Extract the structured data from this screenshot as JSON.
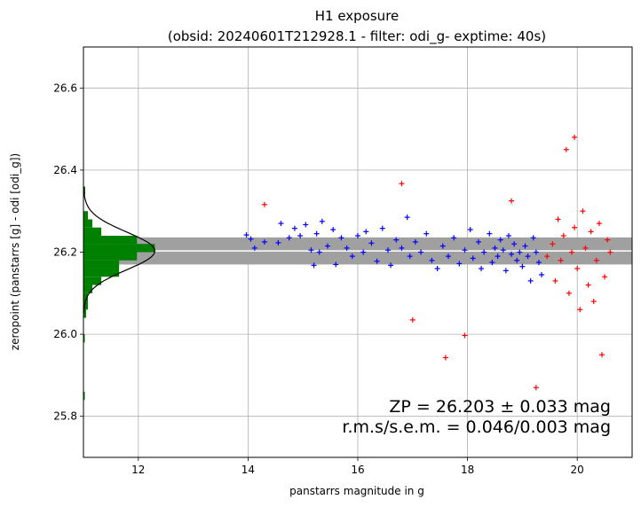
{
  "chart_data": {
    "type": "scatter",
    "title": "H1 exposure",
    "subtitle": "(obsid: 20240601T212928.1 - filter: odi_g- exptime: 40s)",
    "xlabel": "panstarrs magnitude in g",
    "ylabel": "zeropoint (panstarrs [g] - odi [odi_g])",
    "xlim": [
      11.0,
      21.0
    ],
    "ylim": [
      25.7,
      26.7
    ],
    "xticks": [
      12,
      14,
      16,
      18,
      20
    ],
    "xtick_labels": [
      "12",
      "14",
      "16",
      "18",
      "20"
    ],
    "yticks": [
      25.8,
      26.0,
      26.2,
      26.4,
      26.6
    ],
    "ytick_labels": [
      "25.8",
      "26.0",
      "26.2",
      "26.4",
      "26.6"
    ],
    "grid": true,
    "zero_point": 26.203,
    "zp_uncertainty": 0.033,
    "rms": 0.046,
    "sem": 0.003,
    "annotation_lines": [
      "ZP = 26.203 ± 0.033 mag",
      "r.m.s/s.e.m. = 0.046/0.003 mag"
    ],
    "colors": {
      "used": "#0000ff",
      "rejected": "#ff0000",
      "histogram": "#008000",
      "band": "#a0a0a0",
      "zp_line": "#ffffff",
      "gaussian": "#000000",
      "grid": "#b0b0b0"
    },
    "histogram": {
      "orientation": "horizontal",
      "bins": [
        {
          "y0": 26.16,
          "y1": 26.18,
          "count": 4
        },
        {
          "y0": 26.18,
          "y1": 26.2,
          "count": 6
        },
        {
          "y0": 26.2,
          "y1": 26.22,
          "count": 8
        },
        {
          "y0": 26.22,
          "y1": 26.24,
          "count": 6
        },
        {
          "y0": 26.14,
          "y1": 26.16,
          "count": 4
        },
        {
          "y0": 26.12,
          "y1": 26.14,
          "count": 2
        },
        {
          "y0": 26.24,
          "y1": 26.26,
          "count": 2
        },
        {
          "y0": 26.1,
          "y1": 26.12,
          "count": 1
        },
        {
          "y0": 26.26,
          "y1": 26.28,
          "count": 1
        },
        {
          "y0": 26.08,
          "y1": 26.1,
          "count": 0.5
        },
        {
          "y0": 26.28,
          "y1": 26.3,
          "count": 0.5
        },
        {
          "y0": 26.06,
          "y1": 26.08,
          "count": 0.5
        },
        {
          "y0": 26.04,
          "y1": 26.06,
          "count": 0.3
        },
        {
          "y0": 26.34,
          "y1": 26.36,
          "count": 0.2
        },
        {
          "y0": 25.98,
          "y1": 26.0,
          "count": 0.15
        },
        {
          "y0": 25.84,
          "y1": 25.86,
          "count": 0.15
        }
      ]
    },
    "series": [
      {
        "status": "used",
        "points": [
          {
            "x": 13.97,
            "y": 26.242
          },
          {
            "x": 14.05,
            "y": 26.232
          },
          {
            "x": 14.12,
            "y": 26.21
          },
          {
            "x": 14.3,
            "y": 26.225
          },
          {
            "x": 14.55,
            "y": 26.223
          },
          {
            "x": 14.6,
            "y": 26.27
          },
          {
            "x": 14.75,
            "y": 26.235
          },
          {
            "x": 14.85,
            "y": 26.258
          },
          {
            "x": 14.95,
            "y": 26.24
          },
          {
            "x": 15.05,
            "y": 26.267
          },
          {
            "x": 15.15,
            "y": 26.205
          },
          {
            "x": 15.2,
            "y": 26.168
          },
          {
            "x": 15.25,
            "y": 26.245
          },
          {
            "x": 15.3,
            "y": 26.2
          },
          {
            "x": 15.35,
            "y": 26.275
          },
          {
            "x": 15.45,
            "y": 26.215
          },
          {
            "x": 15.55,
            "y": 26.255
          },
          {
            "x": 15.6,
            "y": 26.17
          },
          {
            "x": 15.7,
            "y": 26.235
          },
          {
            "x": 15.8,
            "y": 26.21
          },
          {
            "x": 15.9,
            "y": 26.19
          },
          {
            "x": 16.0,
            "y": 26.24
          },
          {
            "x": 16.1,
            "y": 26.2
          },
          {
            "x": 16.15,
            "y": 26.25
          },
          {
            "x": 16.25,
            "y": 26.222
          },
          {
            "x": 16.35,
            "y": 26.178
          },
          {
            "x": 16.45,
            "y": 26.258
          },
          {
            "x": 16.55,
            "y": 26.205
          },
          {
            "x": 16.6,
            "y": 26.168
          },
          {
            "x": 16.7,
            "y": 26.23
          },
          {
            "x": 16.8,
            "y": 26.21
          },
          {
            "x": 16.9,
            "y": 26.285
          },
          {
            "x": 16.95,
            "y": 26.19
          },
          {
            "x": 17.05,
            "y": 26.225
          },
          {
            "x": 17.15,
            "y": 26.2
          },
          {
            "x": 17.25,
            "y": 26.245
          },
          {
            "x": 17.35,
            "y": 26.18
          },
          {
            "x": 17.45,
            "y": 26.16
          },
          {
            "x": 17.55,
            "y": 26.215
          },
          {
            "x": 17.65,
            "y": 26.19
          },
          {
            "x": 17.75,
            "y": 26.235
          },
          {
            "x": 17.85,
            "y": 26.172
          },
          {
            "x": 17.95,
            "y": 26.205
          },
          {
            "x": 18.05,
            "y": 26.255
          },
          {
            "x": 18.1,
            "y": 26.185
          },
          {
            "x": 18.2,
            "y": 26.225
          },
          {
            "x": 18.25,
            "y": 26.16
          },
          {
            "x": 18.3,
            "y": 26.2
          },
          {
            "x": 18.4,
            "y": 26.245
          },
          {
            "x": 18.45,
            "y": 26.175
          },
          {
            "x": 18.5,
            "y": 26.21
          },
          {
            "x": 18.55,
            "y": 26.19
          },
          {
            "x": 18.6,
            "y": 26.23
          },
          {
            "x": 18.65,
            "y": 26.205
          },
          {
            "x": 18.7,
            "y": 26.155
          },
          {
            "x": 18.75,
            "y": 26.24
          },
          {
            "x": 18.8,
            "y": 26.195
          },
          {
            "x": 18.85,
            "y": 26.22
          },
          {
            "x": 18.9,
            "y": 26.18
          },
          {
            "x": 18.95,
            "y": 26.2
          },
          {
            "x": 19.0,
            "y": 26.165
          },
          {
            "x": 19.05,
            "y": 26.215
          },
          {
            "x": 19.1,
            "y": 26.19
          },
          {
            "x": 19.15,
            "y": 26.13
          },
          {
            "x": 19.2,
            "y": 26.235
          },
          {
            "x": 19.25,
            "y": 26.2
          },
          {
            "x": 19.3,
            "y": 26.175
          },
          {
            "x": 19.35,
            "y": 26.145
          }
        ]
      },
      {
        "status": "rejected",
        "points": [
          {
            "x": 14.3,
            "y": 26.316
          },
          {
            "x": 16.8,
            "y": 26.367
          },
          {
            "x": 17.0,
            "y": 26.035
          },
          {
            "x": 17.6,
            "y": 25.943
          },
          {
            "x": 17.95,
            "y": 25.997
          },
          {
            "x": 18.8,
            "y": 26.325
          },
          {
            "x": 19.25,
            "y": 25.87
          },
          {
            "x": 19.45,
            "y": 26.19
          },
          {
            "x": 19.55,
            "y": 26.22
          },
          {
            "x": 19.6,
            "y": 26.13
          },
          {
            "x": 19.65,
            "y": 26.28
          },
          {
            "x": 19.7,
            "y": 26.18
          },
          {
            "x": 19.75,
            "y": 26.24
          },
          {
            "x": 19.8,
            "y": 26.45
          },
          {
            "x": 19.85,
            "y": 26.1
          },
          {
            "x": 19.9,
            "y": 26.2
          },
          {
            "x": 19.95,
            "y": 26.26
          },
          {
            "x": 20.0,
            "y": 26.16
          },
          {
            "x": 20.05,
            "y": 26.06
          },
          {
            "x": 20.1,
            "y": 26.3
          },
          {
            "x": 20.15,
            "y": 26.21
          },
          {
            "x": 20.2,
            "y": 26.12
          },
          {
            "x": 20.25,
            "y": 26.25
          },
          {
            "x": 20.3,
            "y": 26.08
          },
          {
            "x": 20.35,
            "y": 26.18
          },
          {
            "x": 20.4,
            "y": 26.27
          },
          {
            "x": 20.45,
            "y": 25.95
          },
          {
            "x": 20.5,
            "y": 26.14
          },
          {
            "x": 20.55,
            "y": 26.23
          },
          {
            "x": 20.6,
            "y": 26.2
          },
          {
            "x": 19.95,
            "y": 26.48
          }
        ]
      }
    ]
  }
}
